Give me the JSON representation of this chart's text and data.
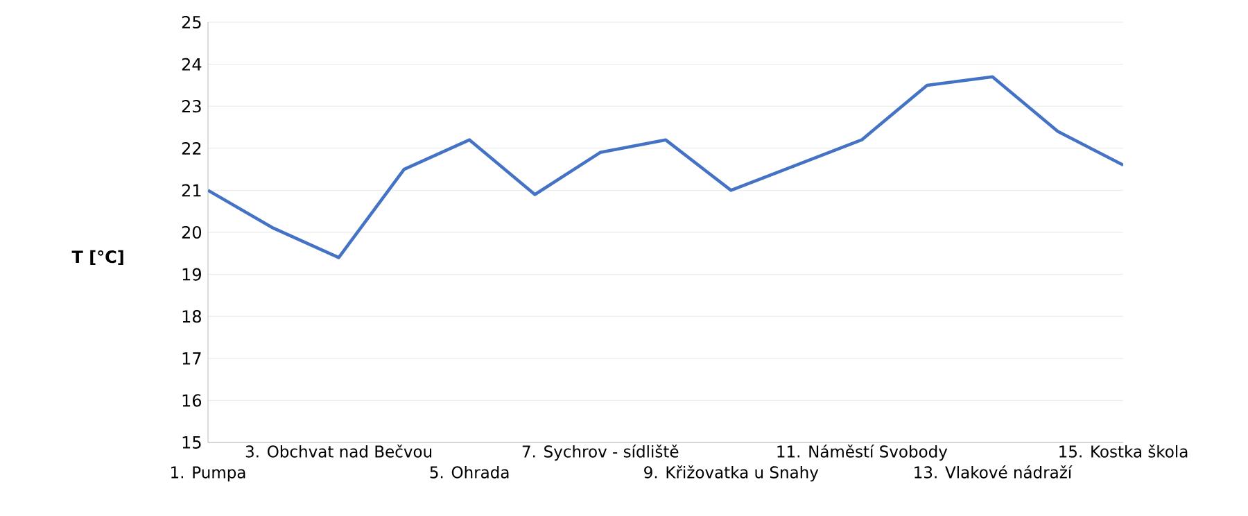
{
  "chart_data": {
    "type": "line",
    "ylabel": "T [°C]",
    "categories": [
      "1. Pumpa",
      null,
      "3. Obchvat nad Bečvou",
      null,
      "5. Ohrada",
      null,
      "7. Sychrov - sídliště",
      null,
      "9. Křižovatka u Snahy",
      null,
      "11. Náměstí Svobody",
      null,
      "13. Vlakové nádraží",
      null,
      "15. Kostka škola"
    ],
    "series": [
      {
        "color": "#4472c4",
        "values": [
          21.0,
          20.1,
          19.4,
          21.5,
          22.2,
          20.9,
          21.9,
          22.2,
          21.0,
          21.6,
          22.2,
          23.5,
          23.7,
          22.4,
          21.6
        ]
      }
    ],
    "ylim": [
      15,
      25
    ],
    "yticks": [
      15,
      16,
      17,
      18,
      19,
      20,
      21,
      22,
      23,
      24,
      25
    ],
    "grid": "y",
    "marker": "none",
    "line_style": "solid"
  }
}
